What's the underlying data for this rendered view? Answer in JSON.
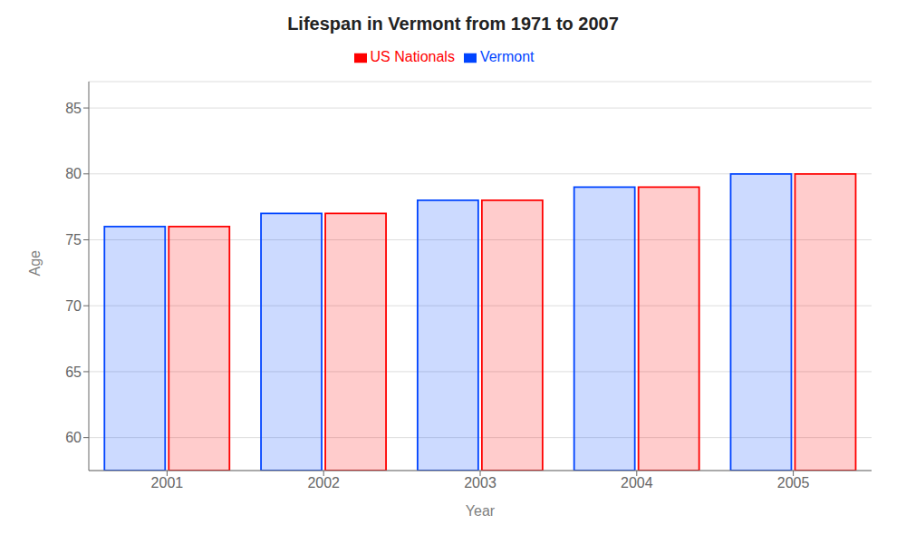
{
  "chart_data": {
    "type": "bar",
    "title": "Lifespan in Vermont from 1971 to 2007",
    "xlabel": "Year",
    "ylabel": "Age",
    "categories": [
      "2001",
      "2002",
      "2003",
      "2004",
      "2005"
    ],
    "series": [
      {
        "name": "Vermont",
        "color": "#0044ff",
        "values": [
          76,
          77,
          78,
          79,
          80
        ]
      },
      {
        "name": "US Nationals",
        "color": "#ff0000",
        "values": [
          76,
          77,
          78,
          79,
          80
        ]
      }
    ],
    "ylim": [
      57.5,
      87
    ],
    "yticks": [
      60,
      65,
      70,
      75,
      80,
      85
    ],
    "grid": true,
    "legend": "top"
  }
}
